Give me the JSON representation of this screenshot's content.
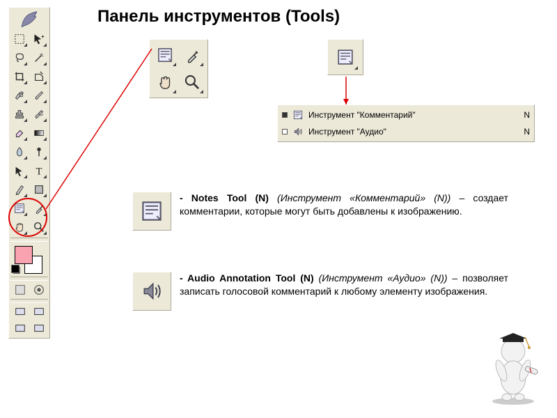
{
  "title": "Панель инструментов (Tools)",
  "colors": {
    "panel_bg": "#ece9d8",
    "panel_border": "#aca899",
    "accent_red": "#d00000",
    "fg_swatch": "#f9a2b0",
    "bg_swatch": "#ffffff",
    "text": "#000000"
  },
  "toolbox": {
    "tools": [
      {
        "name": "marquee-icon"
      },
      {
        "name": "move-icon"
      },
      {
        "name": "lasso-icon"
      },
      {
        "name": "wand-icon"
      },
      {
        "name": "crop-icon"
      },
      {
        "name": "slice-icon"
      },
      {
        "name": "heal-icon"
      },
      {
        "name": "brush-icon"
      },
      {
        "name": "stamp-icon"
      },
      {
        "name": "history-brush-icon"
      },
      {
        "name": "eraser-icon"
      },
      {
        "name": "gradient-icon"
      },
      {
        "name": "blur-icon"
      },
      {
        "name": "dodge-icon"
      },
      {
        "name": "path-select-icon"
      },
      {
        "name": "type-icon"
      },
      {
        "name": "pen-icon"
      },
      {
        "name": "shape-icon"
      },
      {
        "name": "notes-icon"
      },
      {
        "name": "eyedropper-icon"
      },
      {
        "name": "hand-icon"
      },
      {
        "name": "zoom-icon"
      }
    ]
  },
  "callout4": {
    "cells": [
      {
        "name": "notes-icon"
      },
      {
        "name": "eyedropper-icon"
      },
      {
        "name": "hand-icon"
      },
      {
        "name": "zoom-icon"
      }
    ]
  },
  "flyout": {
    "rows": [
      {
        "icon": "notes-icon",
        "label": "Инструмент \"Комментарий\"",
        "key": "N",
        "active": true
      },
      {
        "icon": "audio-icon",
        "label": "Инструмент \"Аудио\"",
        "key": "N",
        "active": false
      }
    ]
  },
  "descriptions": {
    "notes": {
      "icon": "notes-icon",
      "bold": "- Notes Tool (N)",
      "italic": " (Инструмент «Комментарий» (N))",
      "rest": " – создает комментарии, которые могут быть добавлены к изображению."
    },
    "audio": {
      "icon": "audio-icon",
      "bold": "- Audio Annotation Tool (N)",
      "italic": " (Инструмент «Аудио» (N))",
      "rest": " – позволяет записать голосовой комментарий к любому элементу изображения."
    }
  }
}
